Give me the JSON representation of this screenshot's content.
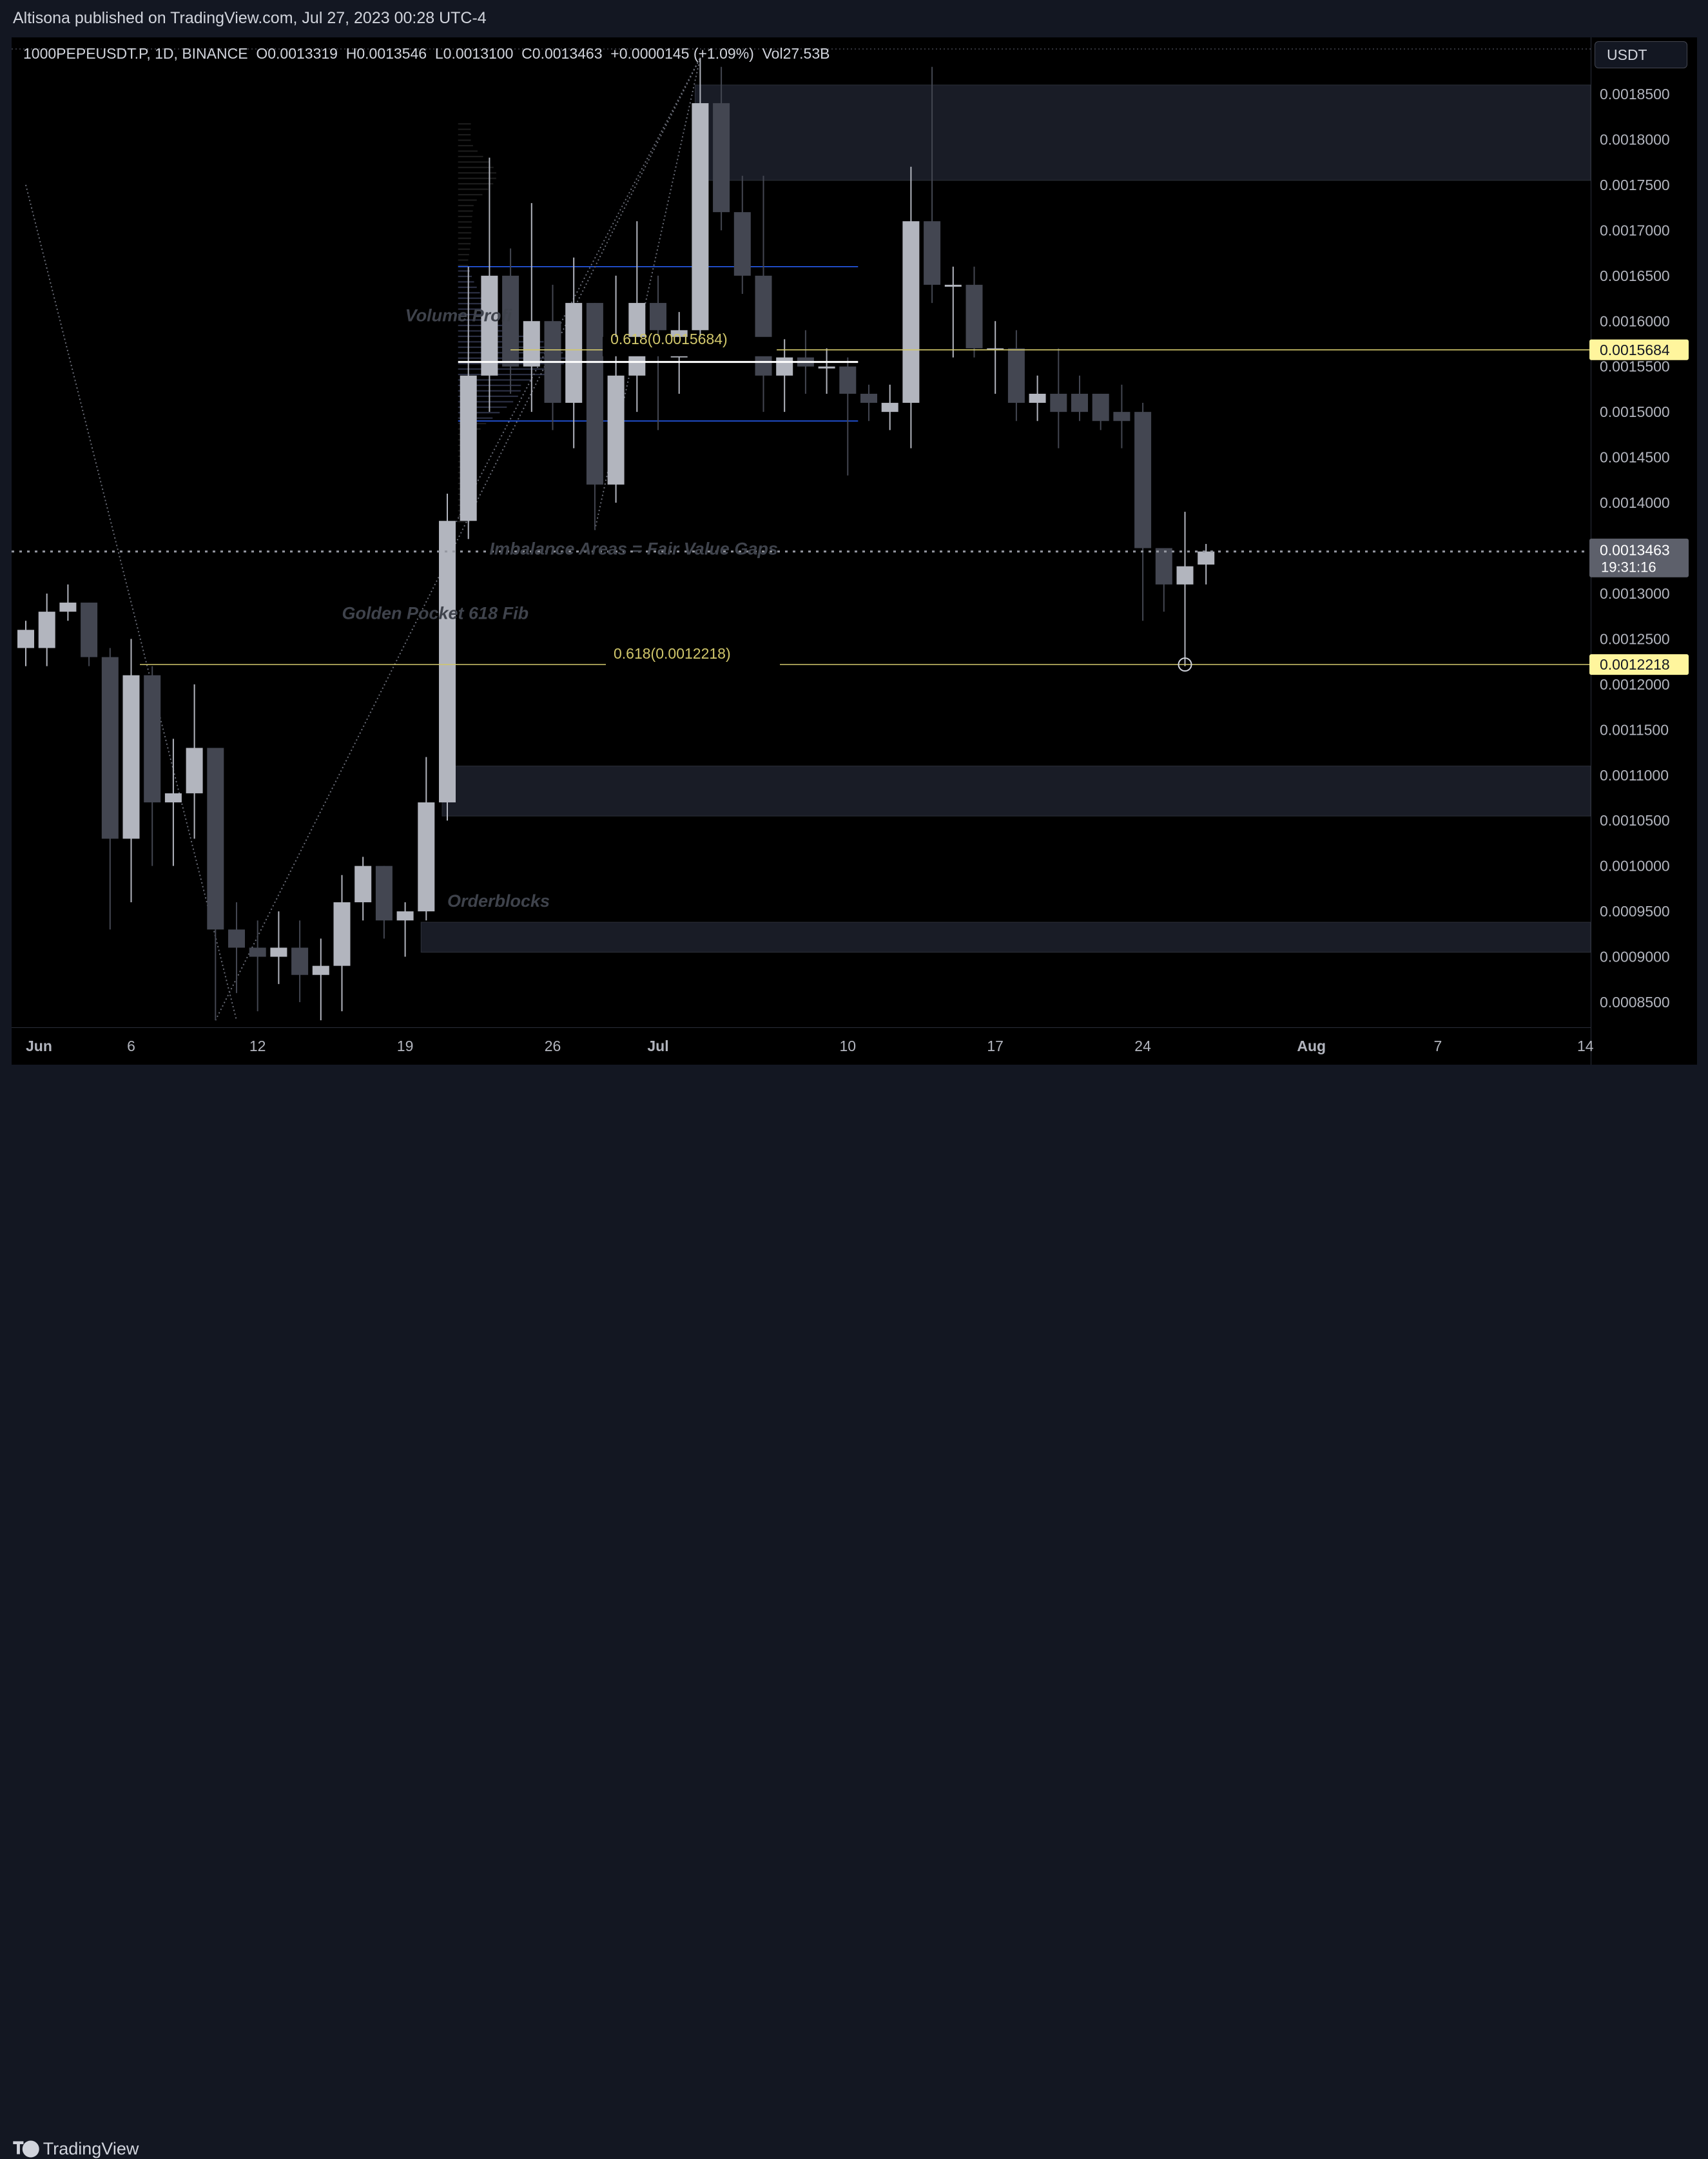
{
  "header": {
    "published_text": "Altisona published on TradingView.com, Jul 27, 2023 00:28 UTC-4"
  },
  "legend": {
    "symbol": "1000PEPEUSDT.P, 1D, BINANCE",
    "open": "O0.0013319",
    "high": "H0.0013546",
    "low": "L0.0013100",
    "close": "C0.0013463",
    "change": "+0.0000145 (+1.09%)",
    "volume": "Vol27.53B"
  },
  "currency_button": "USDT",
  "footer": {
    "brand": "TradingView",
    "logo_icon": "tradingview-logo-icon"
  },
  "colors": {
    "background": "#000000",
    "frame": "#131722",
    "candle_up": "#b2b5be",
    "candle_down": "#434651",
    "fib_line": "#d1c76b",
    "fib_label_bg": "#fff59d",
    "price_label_bg": "#5d606b",
    "zone_fill": "#1e222d",
    "value_area_line": "#2962ff"
  },
  "chart_data": {
    "type": "candlestick",
    "title": "1000PEPEUSDT.P, 1D, BINANCE",
    "ylim": [
      0.00082,
      0.00191
    ],
    "x_ticks": [
      {
        "label": "Jun",
        "date": "2023-06-01"
      },
      {
        "label": "6",
        "date": "2023-06-06"
      },
      {
        "label": "12",
        "date": "2023-06-12"
      },
      {
        "label": "19",
        "date": "2023-06-19"
      },
      {
        "label": "26",
        "date": "2023-06-26"
      },
      {
        "label": "Jul",
        "date": "2023-07-01"
      },
      {
        "label": "10",
        "date": "2023-07-10"
      },
      {
        "label": "17",
        "date": "2023-07-17"
      },
      {
        "label": "24",
        "date": "2023-07-24"
      },
      {
        "label": "Aug",
        "date": "2023-08-01"
      },
      {
        "label": "7",
        "date": "2023-08-07"
      },
      {
        "label": "14",
        "date": "2023-08-14"
      }
    ],
    "y_ticks": [
      "0.0018500",
      "0.0018000",
      "0.0017500",
      "0.0017000",
      "0.0016500",
      "0.0016000",
      "0.0015500",
      "0.0015000",
      "0.0014500",
      "0.0014000",
      "0.0013000",
      "0.0012500",
      "0.0012000",
      "0.0011500",
      "0.0011000",
      "0.0010500",
      "0.0010000",
      "0.0009500",
      "0.0009000",
      "0.0008500"
    ],
    "candles": [
      {
        "date": "2023-06-01",
        "o": 0.00124,
        "h": 0.00127,
        "l": 0.00122,
        "c": 0.00126
      },
      {
        "date": "2023-06-02",
        "o": 0.00124,
        "h": 0.0013,
        "l": 0.00122,
        "c": 0.00128
      },
      {
        "date": "2023-06-03",
        "o": 0.00128,
        "h": 0.00131,
        "l": 0.00127,
        "c": 0.00129
      },
      {
        "date": "2023-06-04",
        "o": 0.00129,
        "h": 0.00129,
        "l": 0.00122,
        "c": 0.00123
      },
      {
        "date": "2023-06-05",
        "o": 0.00123,
        "h": 0.00124,
        "l": 0.00093,
        "c": 0.00103
      },
      {
        "date": "2023-06-06",
        "o": 0.00103,
        "h": 0.00125,
        "l": 0.00096,
        "c": 0.00121
      },
      {
        "date": "2023-06-07",
        "o": 0.00121,
        "h": 0.00122,
        "l": 0.001,
        "c": 0.00107
      },
      {
        "date": "2023-06-08",
        "o": 0.00107,
        "h": 0.00114,
        "l": 0.001,
        "c": 0.00108
      },
      {
        "date": "2023-06-09",
        "o": 0.00108,
        "h": 0.0012,
        "l": 0.00103,
        "c": 0.00113
      },
      {
        "date": "2023-06-10",
        "o": 0.00113,
        "h": 0.00113,
        "l": 0.00083,
        "c": 0.00093
      },
      {
        "date": "2023-06-11",
        "o": 0.00093,
        "h": 0.00096,
        "l": 0.00086,
        "c": 0.00091
      },
      {
        "date": "2023-06-12",
        "o": 0.00091,
        "h": 0.00094,
        "l": 0.00084,
        "c": 0.0009
      },
      {
        "date": "2023-06-13",
        "o": 0.0009,
        "h": 0.00095,
        "l": 0.00087,
        "c": 0.00091
      },
      {
        "date": "2023-06-14",
        "o": 0.00091,
        "h": 0.00094,
        "l": 0.00085,
        "c": 0.00088
      },
      {
        "date": "2023-06-15",
        "o": 0.00088,
        "h": 0.00092,
        "l": 0.00083,
        "c": 0.00089
      },
      {
        "date": "2023-06-16",
        "o": 0.00089,
        "h": 0.00099,
        "l": 0.00084,
        "c": 0.00096
      },
      {
        "date": "2023-06-17",
        "o": 0.00096,
        "h": 0.00101,
        "l": 0.00094,
        "c": 0.001
      },
      {
        "date": "2023-06-18",
        "o": 0.001,
        "h": 0.001,
        "l": 0.00092,
        "c": 0.00094
      },
      {
        "date": "2023-06-19",
        "o": 0.00094,
        "h": 0.00096,
        "l": 0.0009,
        "c": 0.00095
      },
      {
        "date": "2023-06-20",
        "o": 0.00095,
        "h": 0.00112,
        "l": 0.00094,
        "c": 0.00107
      },
      {
        "date": "2023-06-21",
        "o": 0.00107,
        "h": 0.00141,
        "l": 0.00105,
        "c": 0.00138
      },
      {
        "date": "2023-06-22",
        "o": 0.00138,
        "h": 0.00166,
        "l": 0.00136,
        "c": 0.00154
      },
      {
        "date": "2023-06-23",
        "o": 0.00154,
        "h": 0.00178,
        "l": 0.0015,
        "c": 0.00165
      },
      {
        "date": "2023-06-24",
        "o": 0.00165,
        "h": 0.00168,
        "l": 0.00152,
        "c": 0.00155
      },
      {
        "date": "2023-06-25",
        "o": 0.00155,
        "h": 0.00173,
        "l": 0.0015,
        "c": 0.0016
      },
      {
        "date": "2023-06-26",
        "o": 0.0016,
        "h": 0.00164,
        "l": 0.00148,
        "c": 0.00151
      },
      {
        "date": "2023-06-27",
        "o": 0.00151,
        "h": 0.00167,
        "l": 0.00146,
        "c": 0.00162
      },
      {
        "date": "2023-06-28",
        "o": 0.00162,
        "h": 0.00162,
        "l": 0.00137,
        "c": 0.00142
      },
      {
        "date": "2023-06-29",
        "o": 0.00142,
        "h": 0.00165,
        "l": 0.0014,
        "c": 0.00154
      },
      {
        "date": "2023-06-30",
        "o": 0.00154,
        "h": 0.00171,
        "l": 0.0015,
        "c": 0.00162
      },
      {
        "date": "2023-07-01",
        "o": 0.00162,
        "h": 0.00165,
        "l": 0.00148,
        "c": 0.00159
      },
      {
        "date": "2023-07-02",
        "o": 0.00156,
        "h": 0.00161,
        "l": 0.00152,
        "c": 0.00159
      },
      {
        "date": "2023-07-03",
        "o": 0.00159,
        "h": 0.00189,
        "l": 0.00158,
        "c": 0.00184
      },
      {
        "date": "2023-07-04",
        "o": 0.00184,
        "h": 0.00188,
        "l": 0.0017,
        "c": 0.00172
      },
      {
        "date": "2023-07-05",
        "o": 0.00172,
        "h": 0.00176,
        "l": 0.00163,
        "c": 0.00165
      },
      {
        "date": "2023-07-06",
        "o": 0.00165,
        "h": 0.00176,
        "l": 0.0015,
        "c": 0.00154
      },
      {
        "date": "2023-07-07",
        "o": 0.00154,
        "h": 0.00158,
        "l": 0.0015,
        "c": 0.00156
      },
      {
        "date": "2023-07-08",
        "o": 0.00156,
        "h": 0.00159,
        "l": 0.00152,
        "c": 0.00155
      },
      {
        "date": "2023-07-09",
        "o": 0.00155,
        "h": 0.00157,
        "l": 0.00152,
        "c": 0.00155
      },
      {
        "date": "2023-07-10",
        "o": 0.00155,
        "h": 0.00156,
        "l": 0.00143,
        "c": 0.00152
      },
      {
        "date": "2023-07-11",
        "o": 0.00152,
        "h": 0.00153,
        "l": 0.00149,
        "c": 0.00151
      },
      {
        "date": "2023-07-12",
        "o": 0.0015,
        "h": 0.00153,
        "l": 0.00148,
        "c": 0.00151
      },
      {
        "date": "2023-07-13",
        "o": 0.00151,
        "h": 0.00177,
        "l": 0.00146,
        "c": 0.00171
      },
      {
        "date": "2023-07-14",
        "o": 0.00171,
        "h": 0.00188,
        "l": 0.00162,
        "c": 0.00164
      },
      {
        "date": "2023-07-15",
        "o": 0.00164,
        "h": 0.00166,
        "l": 0.00156,
        "c": 0.00164
      },
      {
        "date": "2023-07-16",
        "o": 0.00164,
        "h": 0.00166,
        "l": 0.00156,
        "c": 0.00157
      },
      {
        "date": "2023-07-17",
        "o": 0.00157,
        "h": 0.0016,
        "l": 0.00152,
        "c": 0.00157
      },
      {
        "date": "2023-07-18",
        "o": 0.00157,
        "h": 0.00159,
        "l": 0.00149,
        "c": 0.00151
      },
      {
        "date": "2023-07-19",
        "o": 0.00151,
        "h": 0.00154,
        "l": 0.00149,
        "c": 0.00152
      },
      {
        "date": "2023-07-20",
        "o": 0.00152,
        "h": 0.00157,
        "l": 0.00146,
        "c": 0.0015
      },
      {
        "date": "2023-07-21",
        "o": 0.00152,
        "h": 0.00154,
        "l": 0.00149,
        "c": 0.0015
      },
      {
        "date": "2023-07-22",
        "o": 0.00152,
        "h": 0.00152,
        "l": 0.00148,
        "c": 0.00149
      },
      {
        "date": "2023-07-23",
        "o": 0.0015,
        "h": 0.00153,
        "l": 0.00146,
        "c": 0.00149
      },
      {
        "date": "2023-07-24",
        "o": 0.0015,
        "h": 0.00151,
        "l": 0.00127,
        "c": 0.00135
      },
      {
        "date": "2023-07-25",
        "o": 0.00135,
        "h": 0.00135,
        "l": 0.00128,
        "c": 0.00131
      },
      {
        "date": "2023-07-26",
        "o": 0.00131,
        "h": 0.00139,
        "l": 0.00122,
        "c": 0.00133
      },
      {
        "date": "2023-07-27",
        "o": 0.0013319,
        "h": 0.0013546,
        "l": 0.00131,
        "c": 0.0013463
      }
    ],
    "current_price": {
      "value": "0.0013463",
      "countdown": "19:31:16"
    },
    "fib_levels": [
      {
        "label": "0.618(0.0015684)",
        "axis_label": "0.0015684",
        "value": 0.0015684,
        "from": "2023-06-24",
        "to": "2023-08-16"
      },
      {
        "label": "0.618(0.0012218)",
        "axis_label": "0.0012218",
        "value": 0.0012218,
        "from": "2023-06-11",
        "to": "2023-08-16"
      }
    ],
    "zones": [
      {
        "name": "upper-orderblock",
        "from": "2023-07-03",
        "to": "2023-08-16",
        "top": 0.00186,
        "bottom": 0.001755
      },
      {
        "name": "fair-value-gap",
        "from": "2023-06-21",
        "to": "2023-08-16",
        "top": 0.00111,
        "bottom": 0.001055
      },
      {
        "name": "lower-orderblock",
        "from": "2023-06-20",
        "to": "2023-08-16",
        "top": 0.000938,
        "bottom": 0.000905
      }
    ],
    "volume_profile": {
      "from": "2023-06-22",
      "to": "2023-07-10",
      "poc": 0.001555,
      "vah": 0.00166,
      "val": 0.00149
    },
    "annotations": [
      {
        "text": "Volume Profi",
        "date": "2023-06-19",
        "price": 0.0016
      },
      {
        "text": "Imbalance Areas = Fair Value Gaps",
        "date": "2023-06-23",
        "price": 0.001343
      },
      {
        "text": "Golden Pocket 618 Fib",
        "date": "2023-06-16",
        "price": 0.001272
      },
      {
        "text": "Orderblocks",
        "date": "2023-06-21",
        "price": 0.000955
      }
    ],
    "trend_lines": [
      {
        "from_date": "2023-06-01",
        "from_price": 0.00175,
        "to_date": "2023-06-11",
        "to_price": 0.00083
      },
      {
        "from_date": "2023-06-10",
        "from_price": 0.00083,
        "to_date": "2023-07-03",
        "to_price": 0.00189
      },
      {
        "from_date": "2023-06-21",
        "from_price": 0.00136,
        "to_date": "2023-07-03",
        "to_price": 0.00189
      },
      {
        "from_date": "2023-06-28",
        "from_price": 0.00137,
        "to_date": "2023-07-03",
        "to_price": 0.00189
      }
    ]
  }
}
